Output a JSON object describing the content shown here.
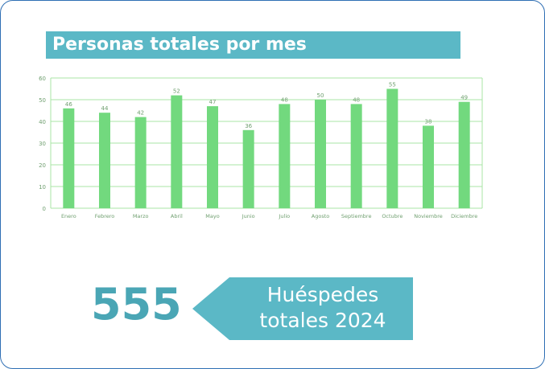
{
  "title": "Personas totales por mes",
  "chart_data": {
    "type": "bar",
    "title": "Personas totales por mes",
    "categories": [
      "Enero",
      "Febrero",
      "Marzo",
      "Abril",
      "Mayo",
      "Junio",
      "Julio",
      "Agosto",
      "Septiembre",
      "Octubre",
      "Noviembre",
      "Diciembre"
    ],
    "values": [
      46,
      44,
      42,
      52,
      47,
      36,
      48,
      50,
      48,
      55,
      38,
      49
    ],
    "ylim": [
      0,
      60
    ],
    "yticks": [
      0,
      10,
      20,
      30,
      40,
      50,
      60
    ],
    "xlabel": "",
    "ylabel": "",
    "grid": true,
    "legend": "none",
    "bar_color": "#72d97e",
    "grid_color": "#a8e6a4"
  },
  "summary": {
    "total": "555",
    "label_line1": "Huéspedes",
    "label_line2": "totales 2024",
    "accent_color": "#5bb8c6"
  }
}
